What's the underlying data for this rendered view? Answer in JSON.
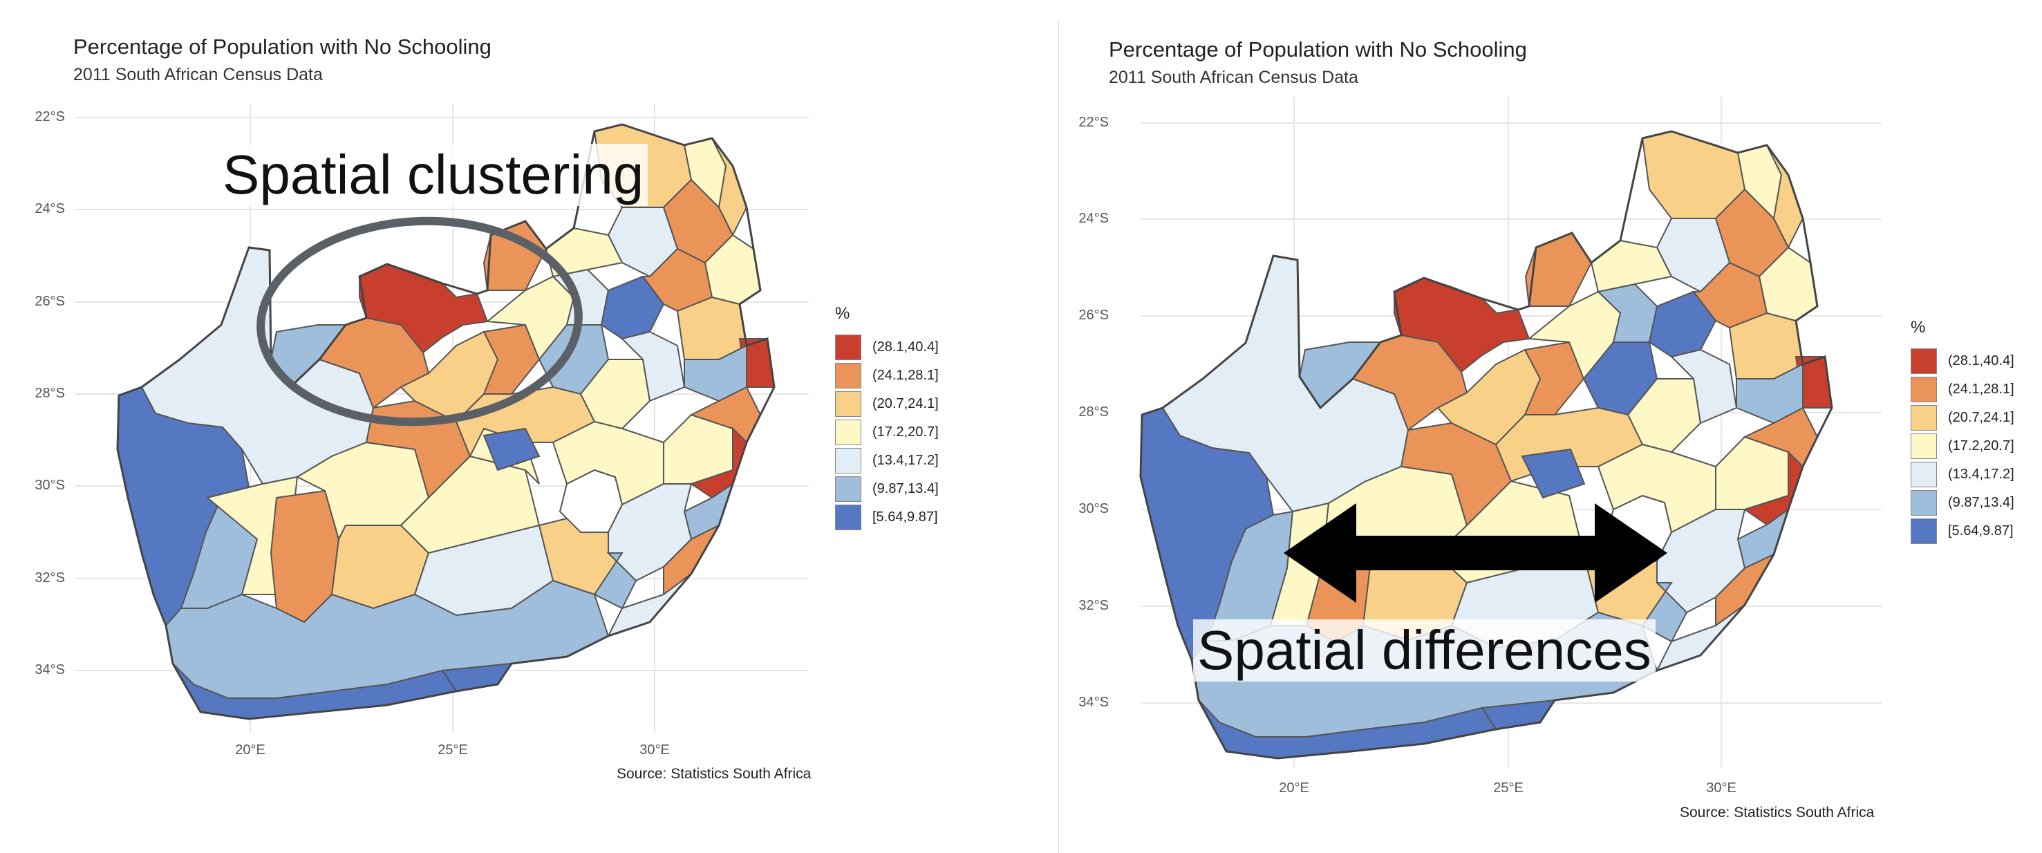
{
  "legend_colors": {
    "c1": "#c8402d",
    "c2": "#eb945a",
    "c3": "#f8d088",
    "c4": "#fdf8c5",
    "c5": "#e3edf6",
    "c6": "#9fbedc",
    "c7": "#5677c1"
  },
  "left": {
    "title": "Percentage of Population with No Schooling",
    "subtitle": "2011 South African Census Data",
    "caption": "Source: Statistics South Africa",
    "y_ticks": [
      "22°S",
      "24°S",
      "26°S",
      "28°S",
      "30°S",
      "32°S",
      "34°S"
    ],
    "x_ticks": [
      "20°E",
      "25°E",
      "30°E"
    ],
    "legend_title": "%",
    "legend": [
      "(28.1,40.4]",
      "(24.1,28.1]",
      "(20.7,24.1]",
      "(17.2,20.7]",
      "(13.4,17.2]",
      "(9.87,13.4]",
      "[5.64,9.87]"
    ],
    "annotation": "Spatial clustering"
  },
  "right": {
    "title": "Percentage of Population with No Schooling",
    "subtitle": "2011 South African Census Data",
    "caption": "Source: Statistics South Africa",
    "y_ticks": [
      "22°S",
      "24°S",
      "26°S",
      "28°S",
      "30°S",
      "32°S",
      "34°S"
    ],
    "x_ticks": [
      "20°E",
      "25°E",
      "30°E"
    ],
    "legend_title": "%",
    "legend": [
      "(28.1,40.4]",
      "(24.1,28.1]",
      "(20.7,24.1]",
      "(17.2,20.7]",
      "(13.4,17.2]",
      "(9.87,13.4]",
      "[5.64,9.87]"
    ],
    "annotation": "Spatial differences"
  }
}
